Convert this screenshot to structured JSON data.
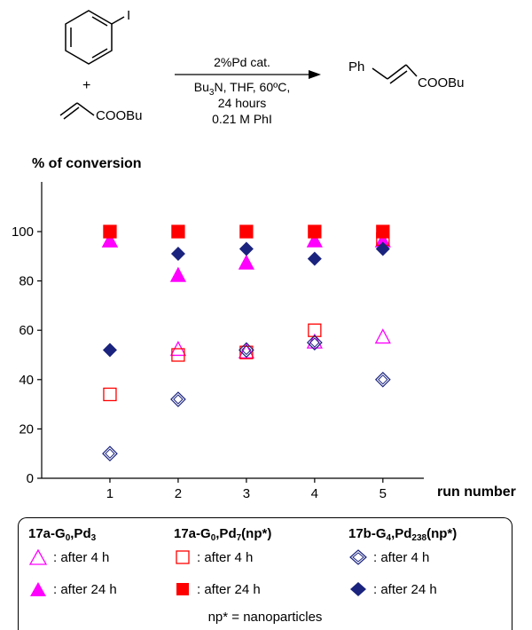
{
  "scheme": {
    "reactant1_label": "I",
    "plus": "+",
    "reactant2_label": "COOBu",
    "conditions": [
      "2%Pd cat.",
      "N, THF, 60ºC,",
      "24 hours",
      "0.21 M PhI"
    ],
    "cond_bu": "Bu",
    "cond_sub": "3",
    "product_ph": "Ph",
    "product_ester": "COOBu"
  },
  "chart_data": {
    "type": "scatter",
    "ylabel": "% of conversion",
    "xlabel": "run number",
    "x": [
      1,
      2,
      3,
      4,
      5
    ],
    "xlim": [
      0,
      5.6
    ],
    "ylim": [
      0,
      100
    ],
    "yticks": [
      0,
      20,
      40,
      60,
      80,
      100
    ],
    "grid": false,
    "series": [
      {
        "group": "17a-G0,Pd3",
        "name": "after 4 h",
        "marker": "triangle-open",
        "color": "#ff00ff",
        "values": [
          96,
          52,
          51,
          55,
          57
        ]
      },
      {
        "group": "17a-G0,Pd3",
        "name": "after 24 h",
        "marker": "triangle-filled",
        "color": "#ff00ff",
        "values": [
          96,
          82,
          87,
          96,
          96
        ]
      },
      {
        "group": "17a-G0,Pd7(np*)",
        "name": "after 4 h",
        "marker": "square-open",
        "color": "#ff0000",
        "values": [
          34,
          50,
          51,
          60,
          97
        ]
      },
      {
        "group": "17a-G0,Pd7(np*)",
        "name": "after 24 h",
        "marker": "square-filled",
        "color": "#ff0000",
        "values": [
          100,
          100,
          100,
          100,
          100
        ]
      },
      {
        "group": "17b-G4,Pd238(np*)",
        "name": "after 4 h",
        "marker": "diamond-open",
        "color": "#1a237e",
        "values": [
          10,
          32,
          52,
          55,
          40
        ]
      },
      {
        "group": "17b-G4,Pd238(np*)",
        "name": "after 24 h",
        "marker": "diamond-filled",
        "color": "#1a237e",
        "values": [
          52,
          91,
          93,
          89,
          93
        ]
      }
    ]
  },
  "legend": {
    "groups": [
      {
        "base": "17a-G",
        "s1": "0",
        "mid": ",Pd",
        "s2": "3",
        "tail": ""
      },
      {
        "base": "17a-G",
        "s1": "0",
        "mid": ",Pd",
        "s2": "7",
        "tail": "(np*)"
      },
      {
        "base": "17b-G",
        "s1": "4",
        "mid": ",Pd",
        "s2": "238",
        "tail": "(np*)"
      }
    ],
    "row_4h": ": after 4 h",
    "row_24h": ": after 24 h",
    "footnote": "np* = nanoparticles"
  }
}
